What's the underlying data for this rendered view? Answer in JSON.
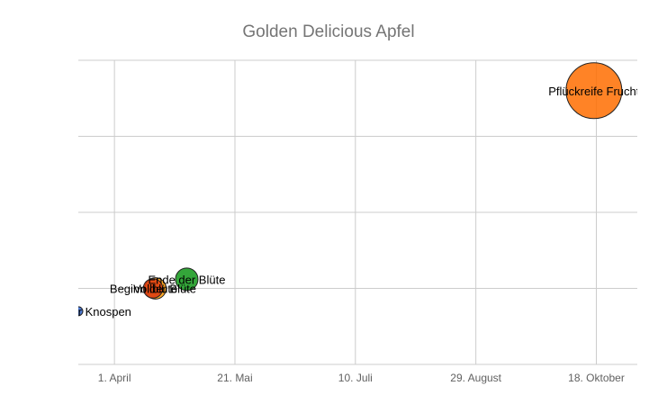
{
  "chart_data": {
    "type": "bubble",
    "title": "Golden Delicious Apfel",
    "xlabel": "",
    "ylabel": "",
    "x_ticks": [
      {
        "date": "2016-04-01",
        "label": "1. April"
      },
      {
        "date": "2016-05-21",
        "label": "21. Mai"
      },
      {
        "date": "2016-07-10",
        "label": "10. Juli"
      },
      {
        "date": "2016-08-29",
        "label": "29. August"
      },
      {
        "date": "2016-10-18",
        "label": "18. Oktober"
      }
    ],
    "xlim": [
      "2016-03-17",
      "2016-11-04"
    ],
    "ylim": [
      0,
      4
    ],
    "y_gridlines": [
      0,
      1,
      2,
      3,
      4
    ],
    "grid": true,
    "legend": "none",
    "points": [
      {
        "label": "Beginn der Knospen",
        "date": "2016-03-17",
        "y": 0.7,
        "size": 1,
        "color": "#3366cc"
      },
      {
        "label": "Beginn der Blüte",
        "date": "2016-04-17",
        "y": 1.0,
        "size": 3,
        "color": "#dc3912"
      },
      {
        "label": "Vollblüte",
        "date": "2016-04-18",
        "y": 1.0,
        "size": 3.4,
        "color": "#ff9900"
      },
      {
        "label": "Ende der Blüte",
        "date": "2016-05-01",
        "y": 1.12,
        "size": 3.6,
        "color": "#109618"
      },
      {
        "label": "Pflückreife Frucht",
        "date": "2016-10-17",
        "y": 3.6,
        "size": 10,
        "color": "#ff6d00"
      }
    ]
  }
}
